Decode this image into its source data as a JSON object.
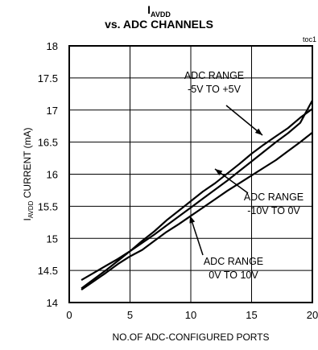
{
  "chart_data": {
    "type": "line",
    "title_main": "I",
    "title_sub": "AVDD",
    "title_line2": "vs. ADC CHANNELS",
    "figure_tag": "toc1",
    "xlabel": "NO.OF ADC-CONFIGURED PORTS",
    "ylabel_main": "I",
    "ylabel_sub": "AVDD",
    "ylabel_rest": " CURRENT (mA)",
    "xlim": [
      0,
      20
    ],
    "ylim": [
      14,
      18
    ],
    "xticks": [
      0,
      5,
      10,
      15,
      20
    ],
    "yticks": [
      14,
      14.5,
      15,
      15.5,
      16,
      16.5,
      17,
      17.5,
      18
    ],
    "xtick_labels": [
      "0",
      "5",
      "10",
      "15",
      "20"
    ],
    "ytick_labels": [
      "14",
      "14.5",
      "15",
      "15.5",
      "16",
      "16.5",
      "17",
      "17.5",
      "18"
    ],
    "grid": true,
    "series": [
      {
        "name": "ADC RANGE -5V TO +5V",
        "x": [
          1,
          2,
          3,
          4,
          5,
          6,
          7,
          8,
          9,
          10,
          11,
          12,
          13,
          14,
          15,
          16,
          17,
          18,
          19,
          20
        ],
        "y": [
          14.35,
          14.46,
          14.57,
          14.68,
          14.8,
          14.93,
          15.06,
          15.2,
          15.34,
          15.48,
          15.62,
          15.76,
          15.9,
          16.05,
          16.2,
          16.35,
          16.5,
          16.64,
          16.8,
          17.15
        ]
      },
      {
        "name": "ADC RANGE -10V TO 0V",
        "x": [
          1,
          2,
          3,
          4,
          5,
          6,
          7,
          8,
          9,
          10,
          11,
          12,
          13,
          14,
          15,
          16,
          17,
          18,
          19,
          20
        ],
        "y": [
          14.22,
          14.36,
          14.5,
          14.65,
          14.8,
          14.96,
          15.11,
          15.28,
          15.43,
          15.58,
          15.73,
          15.86,
          16.01,
          16.16,
          16.32,
          16.46,
          16.59,
          16.72,
          16.88,
          17.02
        ]
      },
      {
        "name": "ADC RANGE 0V TO 10V",
        "x": [
          1,
          2,
          3,
          4,
          5,
          6,
          7,
          8,
          9,
          10,
          11,
          12,
          13,
          14,
          15,
          16,
          17,
          18,
          19,
          20
        ],
        "y": [
          14.2,
          14.33,
          14.46,
          14.6,
          14.72,
          14.82,
          14.96,
          15.1,
          15.22,
          15.35,
          15.48,
          15.61,
          15.74,
          15.86,
          15.98,
          16.1,
          16.22,
          16.36,
          16.5,
          16.65
        ]
      }
    ],
    "annotations": [
      {
        "lines": [
          "ADC RANGE",
          "-5V TO +5V"
        ],
        "series": "ADC RANGE -5V TO +5V"
      },
      {
        "lines": [
          "ADC RANGE",
          "-10V TO 0V"
        ],
        "series": "ADC RANGE -10V TO 0V"
      },
      {
        "lines": [
          "ADC RANGE",
          "0V TO 10V"
        ],
        "series": "ADC RANGE 0V TO 10V"
      }
    ]
  }
}
